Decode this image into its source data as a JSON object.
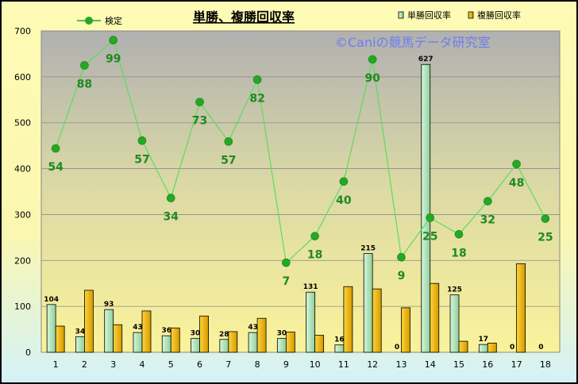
{
  "chart_data": {
    "type": "bar",
    "title": "単勝、複勝回収率",
    "watermark": "©Caniの競馬データ研究室",
    "categories": [
      "1",
      "2",
      "3",
      "4",
      "5",
      "6",
      "7",
      "8",
      "9",
      "10",
      "11",
      "12",
      "13",
      "14",
      "15",
      "16",
      "17",
      "18"
    ],
    "ylim": [
      0,
      700
    ],
    "yticks": [
      0,
      100,
      200,
      300,
      400,
      500,
      600,
      700
    ],
    "grid": true,
    "legend_position": "top",
    "series": [
      {
        "name": "単勝回収率",
        "kind": "bar",
        "color": "#b8e8c0",
        "values": [
          104,
          34,
          93,
          43,
          36,
          30,
          28,
          43,
          30,
          131,
          16,
          215,
          0,
          627,
          125,
          17,
          0,
          0
        ],
        "labels": [
          "104",
          "34",
          "93",
          "43",
          "36",
          "30",
          "28",
          "43",
          "30",
          "131",
          "16",
          "215",
          "0",
          "627",
          "125",
          "17",
          "0",
          "0"
        ]
      },
      {
        "name": "複勝回収率",
        "kind": "bar",
        "color": "#f2b800",
        "values": [
          57,
          135,
          60,
          90,
          53,
          79,
          45,
          74,
          44,
          37,
          143,
          138,
          97,
          150,
          24,
          20,
          193,
          0
        ]
      },
      {
        "name": "検定",
        "kind": "line",
        "color": "#22aa22",
        "values": [
          444,
          625,
          680,
          461,
          336,
          545,
          459,
          594,
          195,
          253,
          372,
          638,
          207,
          293,
          257,
          329,
          410,
          291
        ],
        "labels": [
          "54",
          "88",
          "99",
          "57",
          "34",
          "73",
          "57",
          "82",
          "7",
          "18",
          "40",
          "90",
          "9",
          "25",
          "18",
          "32",
          "48",
          "25"
        ]
      }
    ]
  }
}
